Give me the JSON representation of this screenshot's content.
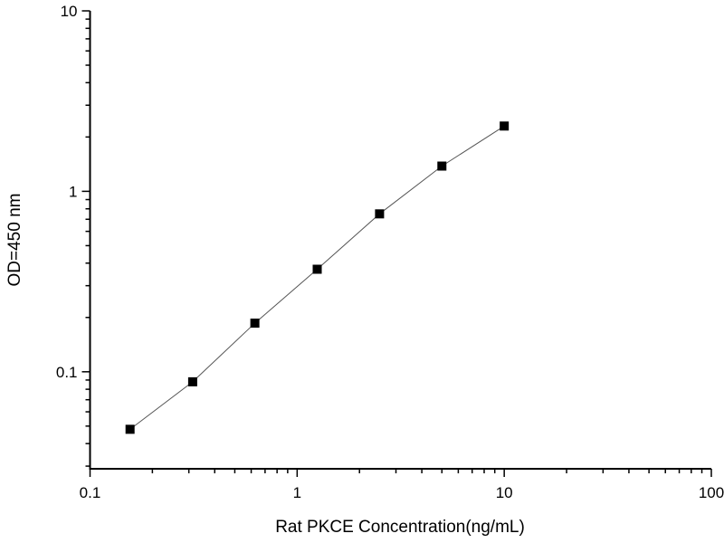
{
  "chart_data": {
    "type": "line",
    "title": "",
    "xlabel": "Rat PKCE Concentration(ng/mL)",
    "ylabel": "OD=450 nm",
    "x_scale": "log",
    "y_scale": "log",
    "xlim": [
      0.1,
      100
    ],
    "ylim": [
      0.029,
      10
    ],
    "x_ticks": [
      "0.1",
      "1",
      "10",
      "100"
    ],
    "y_ticks": [
      "0.1",
      "1",
      "10"
    ],
    "grid": false,
    "marker": "square",
    "colors": {
      "line": "#555555",
      "marker": "#000000",
      "axis": "#000000"
    },
    "series": [
      {
        "x": [
          0.156,
          0.313,
          0.625,
          1.25,
          2.5,
          5,
          10
        ],
        "y": [
          0.048,
          0.088,
          0.186,
          0.37,
          0.75,
          1.38,
          2.3
        ]
      }
    ]
  }
}
